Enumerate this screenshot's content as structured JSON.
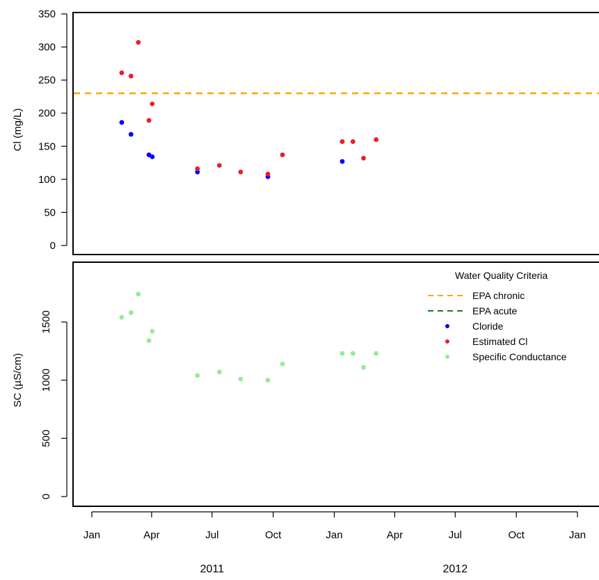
{
  "chart_data": [
    {
      "type": "scatter",
      "ylabel": "Cl (mg/L)",
      "ylim": [
        0,
        350
      ],
      "yticks": [
        "0",
        "50",
        "100",
        "150",
        "200",
        "250",
        "300",
        "350"
      ],
      "x_axis": "shared date axis (see bottom panel)",
      "reference_lines": [
        {
          "name": "EPA chronic",
          "y": 230,
          "style": "dashed",
          "color": "#ffa500"
        }
      ],
      "series": [
        {
          "name": "Cloride",
          "color": "#0000ff",
          "points": [
            {
              "x": "2011-02-15",
              "y": 186
            },
            {
              "x": "2011-03-01",
              "y": 168
            },
            {
              "x": "2011-03-28",
              "y": 137
            },
            {
              "x": "2011-04-02",
              "y": 134
            },
            {
              "x": "2011-06-09",
              "y": 111
            },
            {
              "x": "2011-09-23",
              "y": 104
            },
            {
              "x": "2012-01-13",
              "y": 127
            }
          ]
        },
        {
          "name": "Estimated Cl",
          "color": "#ee1c25",
          "points": [
            {
              "x": "2011-02-15",
              "y": 261
            },
            {
              "x": "2011-03-01",
              "y": 256
            },
            {
              "x": "2011-03-12",
              "y": 307
            },
            {
              "x": "2011-03-28",
              "y": 189
            },
            {
              "x": "2011-04-02",
              "y": 214
            },
            {
              "x": "2011-06-09",
              "y": 116
            },
            {
              "x": "2011-07-12",
              "y": 121
            },
            {
              "x": "2011-08-13",
              "y": 111
            },
            {
              "x": "2011-09-23",
              "y": 108
            },
            {
              "x": "2011-10-15",
              "y": 137
            },
            {
              "x": "2012-01-13",
              "y": 157
            },
            {
              "x": "2012-01-29",
              "y": 157
            },
            {
              "x": "2012-02-14",
              "y": 132
            },
            {
              "x": "2012-03-04",
              "y": 160
            }
          ]
        }
      ]
    },
    {
      "type": "scatter",
      "ylabel": "SC (µS/cm)",
      "ylim": [
        0,
        2000
      ],
      "yticks": [
        "0",
        "500",
        "1000",
        "1500"
      ],
      "xlim": [
        "2010-12-01",
        "2013-01-20"
      ],
      "xticks": [
        {
          "date": "2011-01-01",
          "label": "Jan"
        },
        {
          "date": "2011-04-01",
          "label": "Apr"
        },
        {
          "date": "2011-07-01",
          "label": "Jul"
        },
        {
          "date": "2011-10-01",
          "label": "Oct"
        },
        {
          "date": "2012-01-01",
          "label": "Jan"
        },
        {
          "date": "2012-04-01",
          "label": "Apr"
        },
        {
          "date": "2012-07-01",
          "label": "Jul"
        },
        {
          "date": "2012-10-01",
          "label": "Oct"
        },
        {
          "date": "2013-01-01",
          "label": "Jan"
        }
      ],
      "year_labels": [
        {
          "date": "2011-07-01",
          "label": "2011"
        },
        {
          "date": "2012-07-01",
          "label": "2012"
        }
      ],
      "series": [
        {
          "name": "Specific Conductance",
          "color": "#90ee90",
          "points": [
            {
              "x": "2011-02-15",
              "y": 1540
            },
            {
              "x": "2011-03-01",
              "y": 1580
            },
            {
              "x": "2011-03-12",
              "y": 1740
            },
            {
              "x": "2011-03-28",
              "y": 1340
            },
            {
              "x": "2011-04-02",
              "y": 1420
            },
            {
              "x": "2011-06-09",
              "y": 1040
            },
            {
              "x": "2011-07-12",
              "y": 1070
            },
            {
              "x": "2011-08-13",
              "y": 1010
            },
            {
              "x": "2011-09-23",
              "y": 1000
            },
            {
              "x": "2011-10-15",
              "y": 1140
            },
            {
              "x": "2012-01-13",
              "y": 1230
            },
            {
              "x": "2012-01-29",
              "y": 1230
            },
            {
              "x": "2012-02-14",
              "y": 1110
            },
            {
              "x": "2012-03-04",
              "y": 1230
            }
          ]
        }
      ],
      "legend": {
        "position": "top-right",
        "title": "Water Quality Criteria",
        "entries": [
          {
            "label": "EPA chronic",
            "kind": "dashed-line",
            "color": "#ffa500"
          },
          {
            "label": "EPA acute",
            "kind": "dashed-line",
            "color": "#1a7a1a"
          },
          {
            "label": "Cloride",
            "kind": "point",
            "color": "#0000ff"
          },
          {
            "label": "Estimated Cl",
            "kind": "point",
            "color": "#ee1c25"
          },
          {
            "label": "Specific Conductance",
            "kind": "point",
            "color": "#90ee90"
          }
        ]
      }
    }
  ]
}
